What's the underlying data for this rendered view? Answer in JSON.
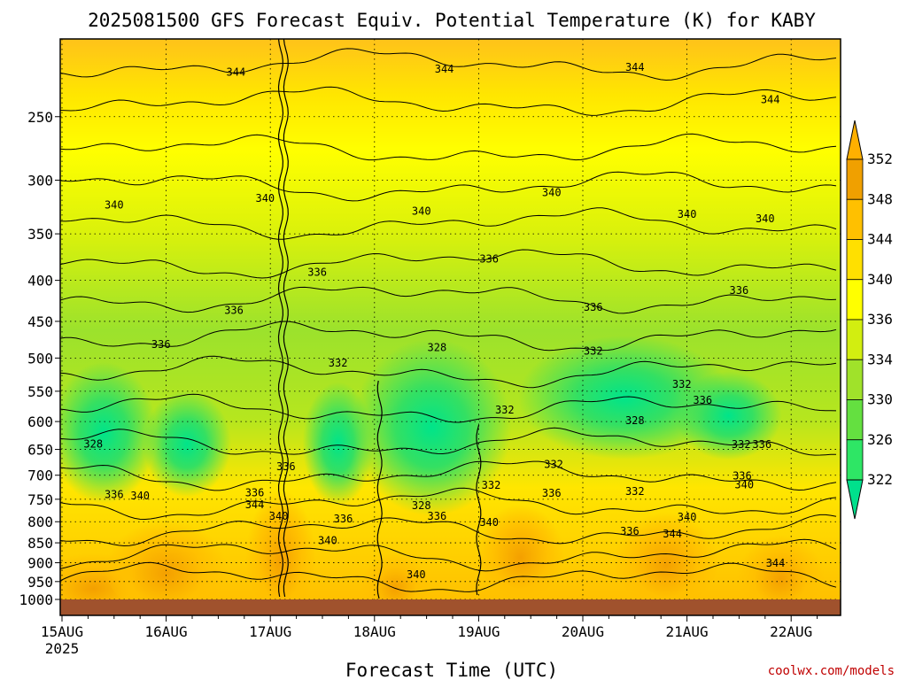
{
  "chart_data": {
    "type": "heatmap",
    "title": "2025081500 GFS Forecast Equiv. Potential Temperature (K) for KABY",
    "xlabel": "Forecast Time (UTC)",
    "ylabel": "",
    "x_tick_labels": [
      "15AUG",
      "16AUG",
      "17AUG",
      "18AUG",
      "19AUG",
      "20AUG",
      "21AUG",
      "22AUG"
    ],
    "x_first_year": "2025",
    "x_range_days": [
      0,
      7.45
    ],
    "y_scale": "log",
    "y_range": [
      1000,
      200
    ],
    "y_ticks": [
      250,
      300,
      350,
      400,
      450,
      500,
      550,
      600,
      650,
      700,
      750,
      800,
      850,
      900,
      950,
      1000
    ],
    "grid": true,
    "colorbar": {
      "levels": [
        322,
        326,
        330,
        334,
        336,
        340,
        344,
        348,
        352
      ],
      "colors": [
        "#00e08c",
        "#2ee665",
        "#64e040",
        "#a0e22a",
        "#d2ee10",
        "#ffff00",
        "#ffe000",
        "#ffc000",
        "#f0a000",
        "#ffb000"
      ],
      "extend": "both"
    },
    "contour_labels": [
      {
        "value": "344",
        "t": 1.67,
        "p": 220
      },
      {
        "value": "344",
        "t": 3.67,
        "p": 218
      },
      {
        "value": "344",
        "t": 5.5,
        "p": 217
      },
      {
        "value": "344",
        "t": 6.8,
        "p": 238
      },
      {
        "value": "340",
        "t": 0.5,
        "p": 322
      },
      {
        "value": "340",
        "t": 1.95,
        "p": 316
      },
      {
        "value": "340",
        "t": 3.45,
        "p": 328
      },
      {
        "value": "340",
        "t": 4.7,
        "p": 311
      },
      {
        "value": "340",
        "t": 6.0,
        "p": 331
      },
      {
        "value": "340",
        "t": 6.75,
        "p": 335
      },
      {
        "value": "336",
        "t": 2.45,
        "p": 391
      },
      {
        "value": "336",
        "t": 4.1,
        "p": 376
      },
      {
        "value": "336",
        "t": 1.65,
        "p": 436
      },
      {
        "value": "336",
        "t": 5.1,
        "p": 432
      },
      {
        "value": "336",
        "t": 6.5,
        "p": 412
      },
      {
        "value": "336",
        "t": 0.95,
        "p": 481
      },
      {
        "value": "332",
        "t": 2.65,
        "p": 507
      },
      {
        "value": "332",
        "t": 5.1,
        "p": 490
      },
      {
        "value": "328",
        "t": 3.6,
        "p": 485
      },
      {
        "value": "332",
        "t": 5.95,
        "p": 539
      },
      {
        "value": "336",
        "t": 6.15,
        "p": 564
      },
      {
        "value": "332",
        "t": 4.25,
        "p": 580
      },
      {
        "value": "328",
        "t": 5.5,
        "p": 598
      },
      {
        "value": "328",
        "t": 0.3,
        "p": 640
      },
      {
        "value": "332",
        "t": 6.52,
        "p": 641
      },
      {
        "value": "336",
        "t": 6.72,
        "p": 641
      },
      {
        "value": "336",
        "t": 2.15,
        "p": 683
      },
      {
        "value": "332",
        "t": 4.72,
        "p": 679
      },
      {
        "value": "336",
        "t": 6.53,
        "p": 701
      },
      {
        "value": "332",
        "t": 4.12,
        "p": 720
      },
      {
        "value": "340",
        "t": 6.55,
        "p": 719
      },
      {
        "value": "332",
        "t": 5.5,
        "p": 733
      },
      {
        "value": "336",
        "t": 0.5,
        "p": 740
      },
      {
        "value": "340",
        "t": 0.75,
        "p": 743
      },
      {
        "value": "336",
        "t": 1.85,
        "p": 736
      },
      {
        "value": "336",
        "t": 4.7,
        "p": 737
      },
      {
        "value": "344",
        "t": 1.85,
        "p": 762
      },
      {
        "value": "328",
        "t": 3.45,
        "p": 764
      },
      {
        "value": "336",
        "t": 3.6,
        "p": 787
      },
      {
        "value": "340",
        "t": 2.08,
        "p": 787
      },
      {
        "value": "336",
        "t": 2.7,
        "p": 793
      },
      {
        "value": "340",
        "t": 4.1,
        "p": 802
      },
      {
        "value": "340",
        "t": 6.0,
        "p": 789
      },
      {
        "value": "336",
        "t": 5.45,
        "p": 822
      },
      {
        "value": "344",
        "t": 5.86,
        "p": 828
      },
      {
        "value": "340",
        "t": 2.55,
        "p": 844
      },
      {
        "value": "340",
        "t": 3.4,
        "p": 931
      },
      {
        "value": "344",
        "t": 6.85,
        "p": 901
      }
    ]
  },
  "credit": "coolwx.com/models"
}
